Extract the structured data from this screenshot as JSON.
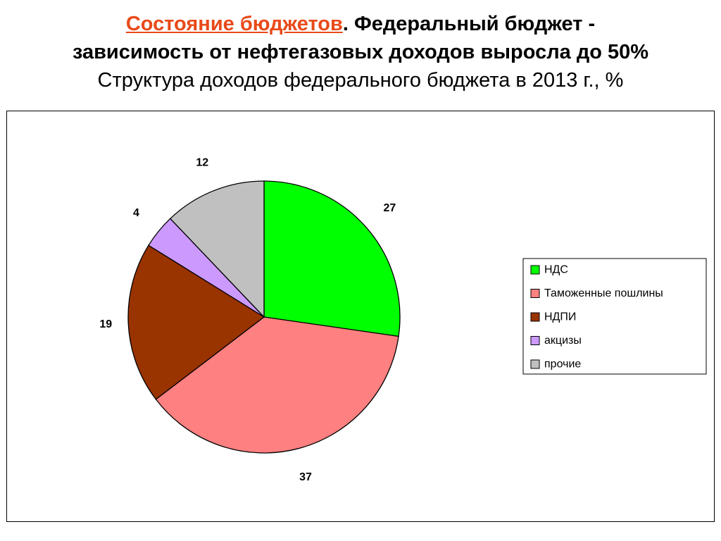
{
  "header": {
    "link_text": "Состояние бюджетов",
    "title_rest": ". Федеральный бюджет -",
    "title_line2": "зависимость от нефтегазовых доходов выросла до 50%",
    "subtitle": "Структура доходов федерального бюджета в 2013 г., %"
  },
  "chart_data": {
    "type": "pie",
    "title": "",
    "categories": [
      "НДС",
      "Таможенные пошлины",
      "НДПИ",
      "акцизы",
      "прочие"
    ],
    "values": [
      27,
      37,
      19,
      4,
      12
    ],
    "data_labels": [
      "27",
      "37",
      "19",
      "4",
      "12"
    ],
    "colors": [
      "#00ff00",
      "#ff8080",
      "#993300",
      "#cc99ff",
      "#c0c0c0"
    ],
    "start_angle": "12 o'clock",
    "direction": "clockwise",
    "legend_position": "right",
    "legend": [
      "НДС",
      "Таможенные пошлины",
      "НДПИ",
      "акцизы",
      "прочие"
    ]
  }
}
